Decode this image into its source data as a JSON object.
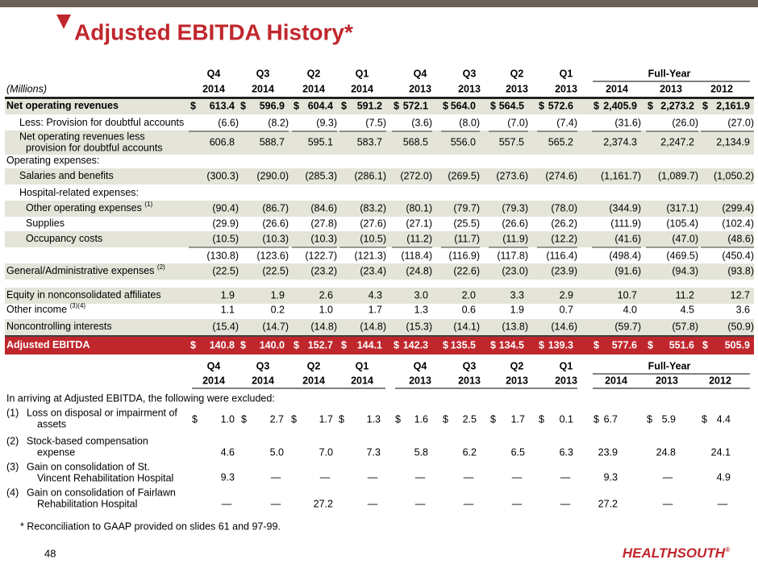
{
  "title": "Adjusted EBITDA History*",
  "header": {
    "quarters": [
      "Q4",
      "Q3",
      "Q2",
      "Q1",
      "Q4",
      "Q3",
      "Q2",
      "Q1"
    ],
    "full_year": "Full-Year",
    "units": "(Millions)",
    "years": [
      "2014",
      "2014",
      "2014",
      "2014",
      "2013",
      "2013",
      "2013",
      "2013",
      "2014",
      "2013",
      "2012"
    ]
  },
  "table": {
    "rows": [
      {
        "label": "Net operating revenues",
        "currency": "$",
        "cells": [
          "613.4",
          "596.9",
          "604.4",
          "591.2",
          "572.1",
          "564.0",
          "564.5",
          "572.6",
          "2,405.9",
          "2,273.2",
          "2,161.9"
        ]
      },
      {
        "label": "Less: Provision for doubtful accounts",
        "cells": [
          "(6.6)",
          "(8.2)",
          "(9.3)",
          "(7.5)",
          "(3.6)",
          "(8.0)",
          "(7.0)",
          "(7.4)",
          "(31.6)",
          "(26.0)",
          "(27.0)"
        ]
      },
      {
        "lines": [
          "Net operating revenues less",
          "provision for doubtful accounts"
        ],
        "cells": [
          "606.8",
          "588.7",
          "595.1",
          "583.7",
          "568.5",
          "556.0",
          "557.5",
          "565.2",
          "2,374.3",
          "2,247.2",
          "2,134.9"
        ]
      },
      {
        "label": "Operating expenses:"
      },
      {
        "label": "Salaries and benefits",
        "cells": [
          "(300.3)",
          "(290.0)",
          "(285.3)",
          "(286.1)",
          "(272.0)",
          "(269.5)",
          "(273.6)",
          "(274.6)",
          "(1,161.7)",
          "(1,089.7)",
          "(1,050.2)"
        ]
      },
      {
        "label": "Hospital-related expenses:"
      },
      {
        "label": "Other operating expenses",
        "note": "(1)",
        "cells": [
          "(90.4)",
          "(86.7)",
          "(84.6)",
          "(83.2)",
          "(80.1)",
          "(79.7)",
          "(79.3)",
          "(78.0)",
          "(344.9)",
          "(317.1)",
          "(299.4)"
        ]
      },
      {
        "label": "Supplies",
        "cells": [
          "(29.9)",
          "(26.6)",
          "(27.8)",
          "(27.6)",
          "(27.1)",
          "(25.5)",
          "(26.6)",
          "(26.2)",
          "(111.9)",
          "(105.4)",
          "(102.4)"
        ]
      },
      {
        "label": "Occupancy costs",
        "cells": [
          "(10.5)",
          "(10.3)",
          "(10.3)",
          "(10.5)",
          "(11.2)",
          "(11.7)",
          "(11.9)",
          "(12.2)",
          "(41.6)",
          "(47.0)",
          "(48.6)"
        ]
      },
      {
        "cells": [
          "(130.8)",
          "(123.6)",
          "(122.7)",
          "(121.3)",
          "(118.4)",
          "(116.9)",
          "(117.8)",
          "(116.4)",
          "(498.4)",
          "(469.5)",
          "(450.4)"
        ]
      },
      {
        "label": "General/Administrative expenses",
        "note": "(2)",
        "cells": [
          "(22.5)",
          "(22.5)",
          "(23.2)",
          "(23.4)",
          "(24.8)",
          "(22.6)",
          "(23.0)",
          "(23.9)",
          "(91.6)",
          "(94.3)",
          "(93.8)"
        ]
      },
      {
        "label": "Equity in nonconsolidated affiliates",
        "cells": [
          "1.9",
          "1.9",
          "2.6",
          "4.3",
          "3.0",
          "2.0",
          "3.3",
          "2.9",
          "10.7",
          "11.2",
          "12.7"
        ]
      },
      {
        "label": "Other income",
        "note": "(3)(4)",
        "cells": [
          "1.1",
          "0.2",
          "1.0",
          "1.7",
          "1.3",
          "0.6",
          "1.9",
          "0.7",
          "4.0",
          "4.5",
          "3.6"
        ]
      },
      {
        "label": "Noncontrolling interests",
        "cells": [
          "(15.4)",
          "(14.7)",
          "(14.8)",
          "(14.8)",
          "(15.3)",
          "(14.1)",
          "(13.8)",
          "(14.6)",
          "(59.7)",
          "(57.8)",
          "(50.9)"
        ]
      },
      {
        "label": "Adjusted EBITDA",
        "currency": "$",
        "cells": [
          "140.8",
          "140.0",
          "152.7",
          "144.1",
          "142.3",
          "135.5",
          "134.5",
          "139.3",
          "577.6",
          "551.6",
          "505.9"
        ]
      }
    ]
  },
  "excluded": {
    "intro": "In arriving at Adjusted EBITDA, the following were excluded:",
    "items": [
      {
        "note": "(1)",
        "lines": [
          "Loss on disposal or impairment of",
          "assets"
        ],
        "currency": "$",
        "cells": [
          "1.0",
          "2.7",
          "1.7",
          "1.3",
          "1.6",
          "2.5",
          "1.7",
          "0.1",
          "6.7",
          "5.9",
          "4.4"
        ]
      },
      {
        "note": "(2)",
        "lines": [
          "Stock-based compensation",
          "expense"
        ],
        "cells": [
          "4.6",
          "5.0",
          "7.0",
          "7.3",
          "5.8",
          "6.2",
          "6.5",
          "6.3",
          "23.9",
          "24.8",
          "24.1"
        ]
      },
      {
        "note": "(3)",
        "lines": [
          "Gain on consolidation of St.",
          "Vincent Rehabilitation Hospital"
        ],
        "cells": [
          "9.3",
          "—",
          "—",
          "—",
          "—",
          "—",
          "—",
          "—",
          "9.3",
          "—",
          "4.9"
        ]
      },
      {
        "note": "(4)",
        "lines": [
          "Gain on consolidation of Fairlawn",
          "Rehabilitation Hospital"
        ],
        "cells": [
          "—",
          "—",
          "27.2",
          "—",
          "—",
          "—",
          "—",
          "—",
          "27.2",
          "—",
          "—"
        ]
      }
    ]
  },
  "footnote": "*  Reconciliation to GAAP provided on slides 61 and 97-99.",
  "page_number": "48",
  "logo": "HEALTHSOUTH",
  "logo_mark": "®"
}
